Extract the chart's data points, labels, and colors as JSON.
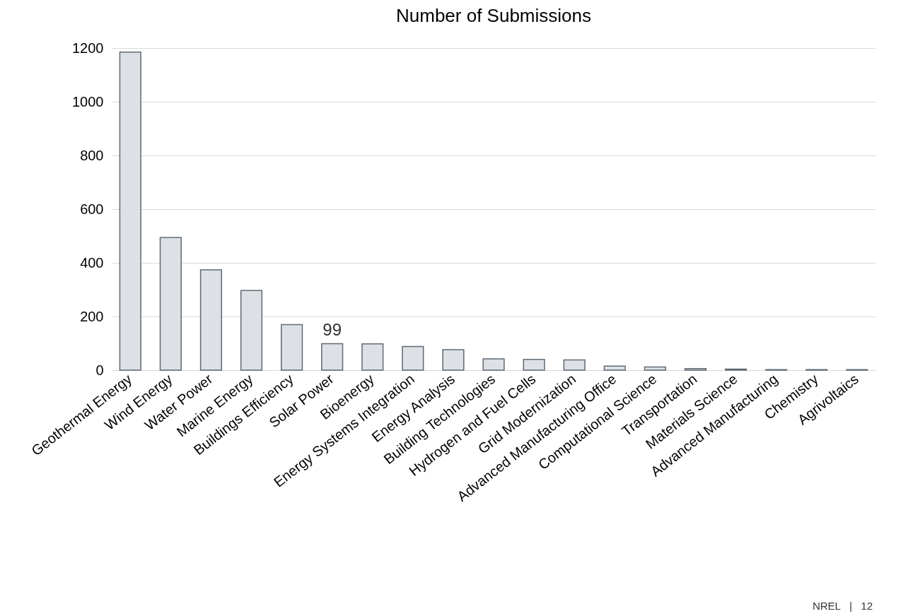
{
  "chart_data": {
    "type": "bar",
    "title": "Number of Submissions",
    "categories": [
      "Geothermal Energy",
      "Wind Energy",
      "Water Power",
      "Marine Energy",
      "Buildings Efficiency",
      "Solar Power",
      "Bioenergy",
      "Energy Systems Integration",
      "Energy Analysis",
      "Building Technologies",
      "Hydrogen and Fuel Cells",
      "Grid Modernization",
      "Advanced Manufacturing Office",
      "Computational Science",
      "Transportation",
      "Materials Science",
      "Advanced Manufacturing",
      "Chemistry",
      "Agrivoltaics"
    ],
    "values": [
      1185,
      494,
      374,
      297,
      170,
      99,
      98,
      88,
      76,
      42,
      40,
      38,
      15,
      12,
      6,
      4,
      2,
      2,
      2
    ],
    "color": "#dde0e5",
    "ylim": [
      0,
      1200
    ],
    "yticks": [
      0,
      200,
      400,
      600,
      800,
      1000,
      1200
    ],
    "grid": "y",
    "annotations": [
      {
        "text": "99",
        "x": "Solar Power",
        "y": 99
      },
      "NREL   |   12"
    ]
  }
}
